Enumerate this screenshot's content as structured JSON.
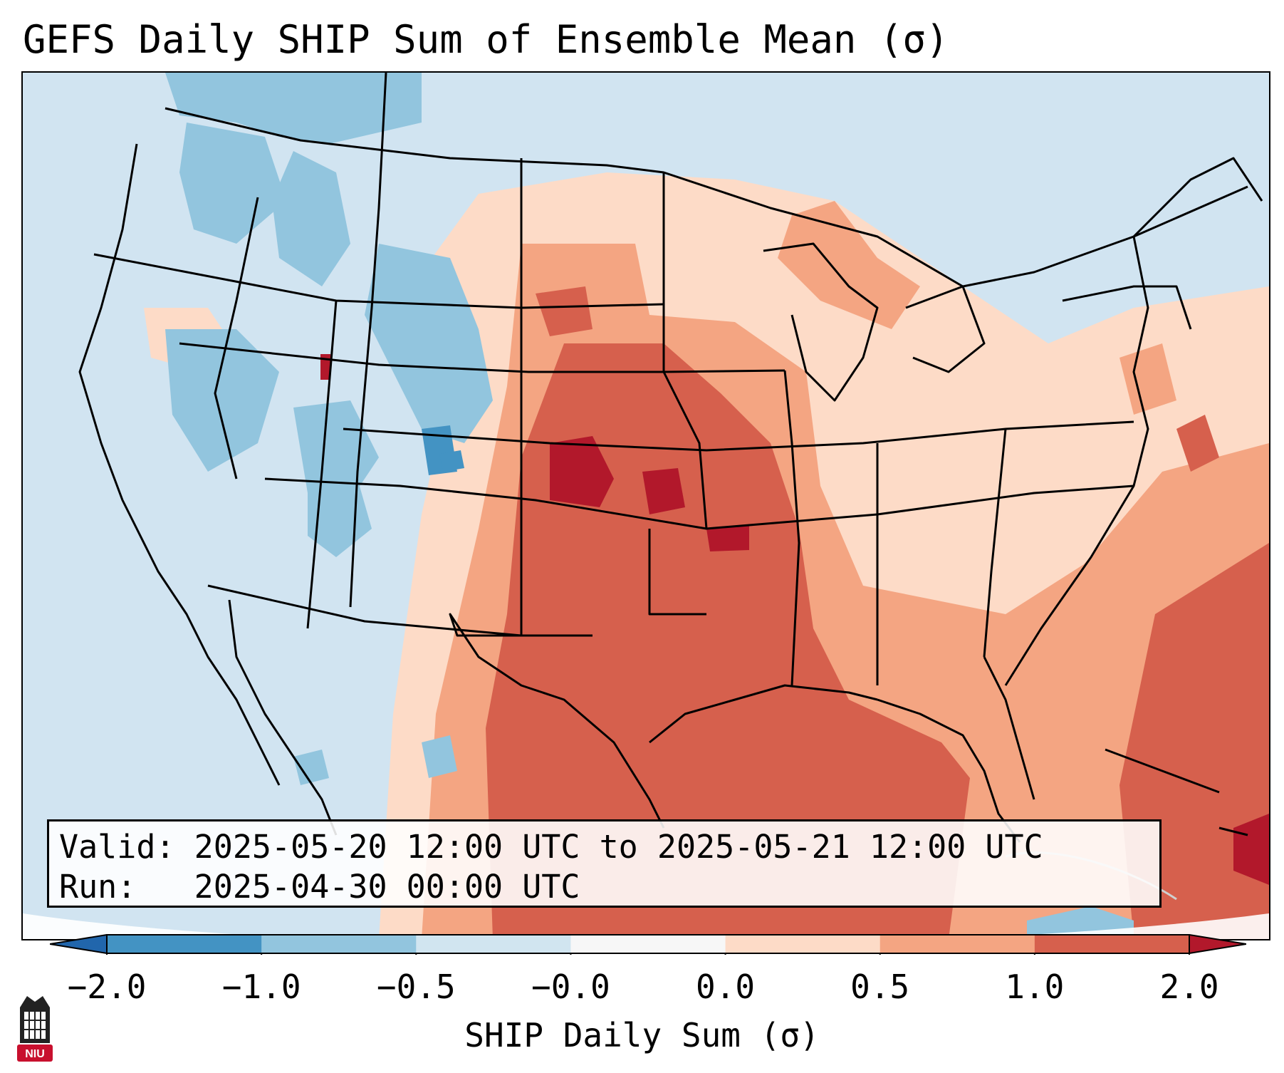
{
  "title": "GEFS Daily SHIP Sum of Ensemble Mean (σ)",
  "info": {
    "valid_line": "Valid: 2025-05-20 12:00 UTC to 2025-05-21 12:00 UTC",
    "run_line": "Run:   2025-04-30 00:00 UTC"
  },
  "colorbar": {
    "label": "SHIP Daily Sum (σ)",
    "ticks": [
      "−2.0",
      "−1.0",
      "−0.5",
      "−0.0",
      "0.0",
      "0.5",
      "1.0",
      "2.0"
    ],
    "bins": [
      {
        "from": "-2.0",
        "to": "-1.0",
        "color": "#4393c3"
      },
      {
        "from": "-1.0",
        "to": "-0.5",
        "color": "#92c5de"
      },
      {
        "from": "-0.5",
        "to": "-0.0",
        "color": "#d1e5f0"
      },
      {
        "from": "-0.0",
        "to": "0.0",
        "color": "#f7f7f7"
      },
      {
        "from": "0.0",
        "to": "0.5",
        "color": "#fddbc7"
      },
      {
        "from": "0.5",
        "to": "1.0",
        "color": "#f4a582"
      },
      {
        "from": "1.0",
        "to": "2.0",
        "color": "#d6604d"
      }
    ],
    "under_color": "#2166ac",
    "over_color": "#b2182b"
  },
  "logo": {
    "text": "NIU",
    "color": "#c8102e"
  }
}
